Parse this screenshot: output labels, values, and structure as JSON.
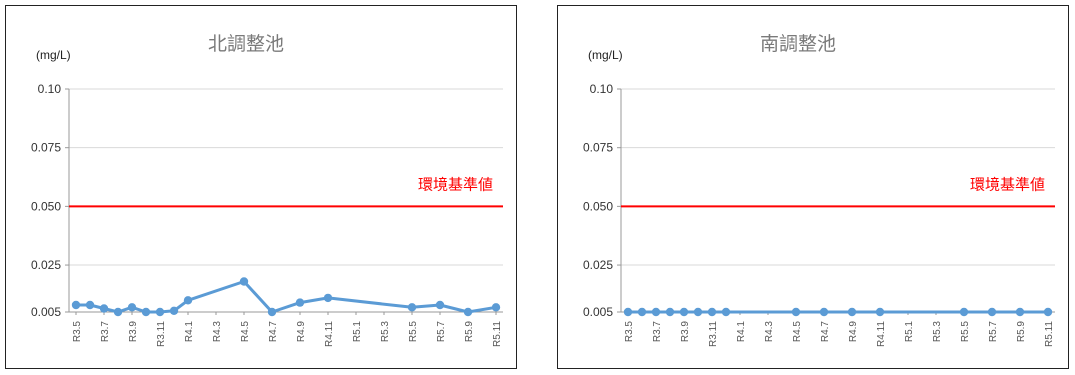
{
  "chart_data": [
    {
      "type": "line",
      "title": "北調整池",
      "ylabel": "(mg/L)",
      "ylim": [
        0.005,
        0.1
      ],
      "yticks": [
        "0.10",
        "0.075",
        "0.050",
        "0.025",
        "0.005"
      ],
      "ytick_values": [
        0.1,
        0.075,
        0.05,
        0.025,
        0.005
      ],
      "x_labels": [
        "R3.5",
        "R3.7",
        "R3.9",
        "R3.11",
        "R4.1",
        "R4.3",
        "R4.5",
        "R4.7",
        "R4.9",
        "R4.11",
        "R5.1",
        "R5.3",
        "R5.5",
        "R5.7",
        "R5.9",
        "R5.11"
      ],
      "reference": {
        "label": "環境基準値",
        "value": 0.05,
        "color": "#ff0000"
      },
      "series_color": "#5b9bd5",
      "points": [
        {
          "x": "R3.5",
          "y": 0.008
        },
        {
          "x": "R3.6",
          "y": 0.008
        },
        {
          "x": "R3.7",
          "y": 0.0065
        },
        {
          "x": "R3.8",
          "y": 0.005
        },
        {
          "x": "R3.9",
          "y": 0.007
        },
        {
          "x": "R3.10",
          "y": 0.005
        },
        {
          "x": "R3.11",
          "y": 0.005
        },
        {
          "x": "R3.12",
          "y": 0.0055
        },
        {
          "x": "R4.1",
          "y": 0.01
        },
        {
          "x": "R4.5",
          "y": 0.018
        },
        {
          "x": "R4.7",
          "y": 0.005
        },
        {
          "x": "R4.9",
          "y": 0.009
        },
        {
          "x": "R4.11",
          "y": 0.011
        },
        {
          "x": "R5.5",
          "y": 0.007
        },
        {
          "x": "R5.7",
          "y": 0.008
        },
        {
          "x": "R5.9",
          "y": 0.005
        },
        {
          "x": "R5.11",
          "y": 0.007
        }
      ]
    },
    {
      "type": "line",
      "title": "南調整池",
      "ylabel": "(mg/L)",
      "ylim": [
        0.005,
        0.1
      ],
      "yticks": [
        "0.10",
        "0.075",
        "0.050",
        "0.025",
        "0.005"
      ],
      "ytick_values": [
        0.1,
        0.075,
        0.05,
        0.025,
        0.005
      ],
      "x_labels": [
        "R3.5",
        "R3.7",
        "R3.9",
        "R3.11",
        "R4.1",
        "R4.3",
        "R4.5",
        "R4.7",
        "R4.9",
        "R4.11",
        "R5.1",
        "R5.3",
        "R5.5",
        "R5.7",
        "R5.9",
        "R5.11"
      ],
      "reference": {
        "label": "環境基準値",
        "value": 0.05,
        "color": "#ff0000"
      },
      "series_color": "#5b9bd5",
      "points": [
        {
          "x": "R3.5",
          "y": 0.005
        },
        {
          "x": "R3.6",
          "y": 0.005
        },
        {
          "x": "R3.7",
          "y": 0.005
        },
        {
          "x": "R3.8",
          "y": 0.005
        },
        {
          "x": "R3.9",
          "y": 0.005
        },
        {
          "x": "R3.10",
          "y": 0.005
        },
        {
          "x": "R3.11",
          "y": 0.005
        },
        {
          "x": "R3.12",
          "y": 0.005
        },
        {
          "x": "R4.5",
          "y": 0.005
        },
        {
          "x": "R4.7",
          "y": 0.005
        },
        {
          "x": "R4.9",
          "y": 0.005
        },
        {
          "x": "R4.11",
          "y": 0.005
        },
        {
          "x": "R5.5",
          "y": 0.005
        },
        {
          "x": "R5.7",
          "y": 0.005
        },
        {
          "x": "R5.9",
          "y": 0.005
        },
        {
          "x": "R5.11",
          "y": 0.005
        }
      ]
    }
  ]
}
